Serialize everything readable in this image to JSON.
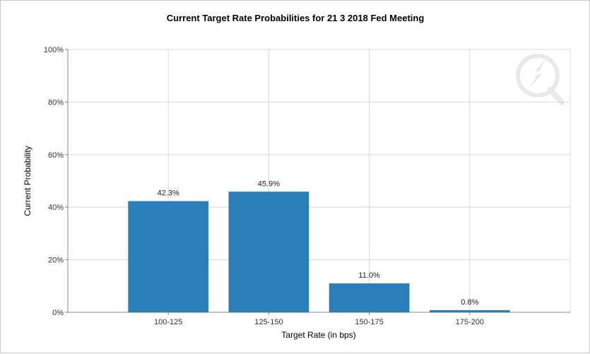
{
  "chart_data": {
    "type": "bar",
    "title": "Current Target Rate Probabilities for 21 3 2018 Fed Meeting",
    "xlabel": "Target Rate (in bps)",
    "ylabel": "Current Probability",
    "categories": [
      "100-125",
      "125-150",
      "150-175",
      "175-200"
    ],
    "values": [
      42.3,
      45.9,
      11.0,
      0.8
    ],
    "data_labels": [
      "42.3%",
      "45.9%",
      "11.0%",
      "0.8%"
    ],
    "ylim": [
      0,
      100
    ],
    "y_ticks": [
      0,
      20,
      40,
      60,
      80,
      100
    ],
    "y_tick_labels": [
      "0%",
      "20%",
      "40%",
      "60%",
      "80%",
      "100%"
    ],
    "grid": true,
    "legend": "none",
    "bar_color": "#2a7fb8"
  }
}
